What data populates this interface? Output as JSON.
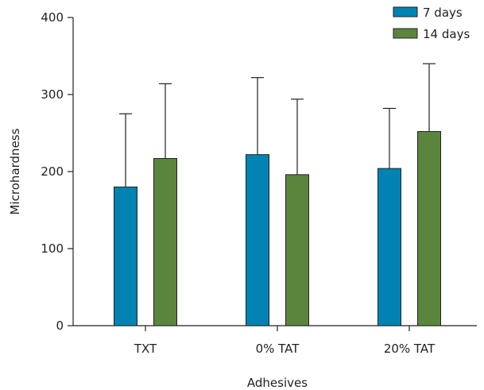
{
  "chart_data": {
    "type": "bar",
    "title": "",
    "xlabel": "Adhesives",
    "ylabel": "Microhardness",
    "ylim": [
      0,
      400
    ],
    "yticks": [
      0,
      100,
      200,
      300,
      400
    ],
    "categories": [
      "TXT",
      "0% TAT",
      "20% TAT"
    ],
    "series": [
      {
        "name": "7 days",
        "color": "#0083b3",
        "values": [
          180,
          222,
          204
        ],
        "errors": [
          95,
          100,
          78
        ]
      },
      {
        "name": "14 days",
        "color": "#5b853d",
        "values": [
          217,
          196,
          252
        ],
        "errors": [
          97,
          98,
          88
        ]
      }
    ],
    "error_bars": "upper only",
    "legend": "top-right",
    "grid": false
  }
}
